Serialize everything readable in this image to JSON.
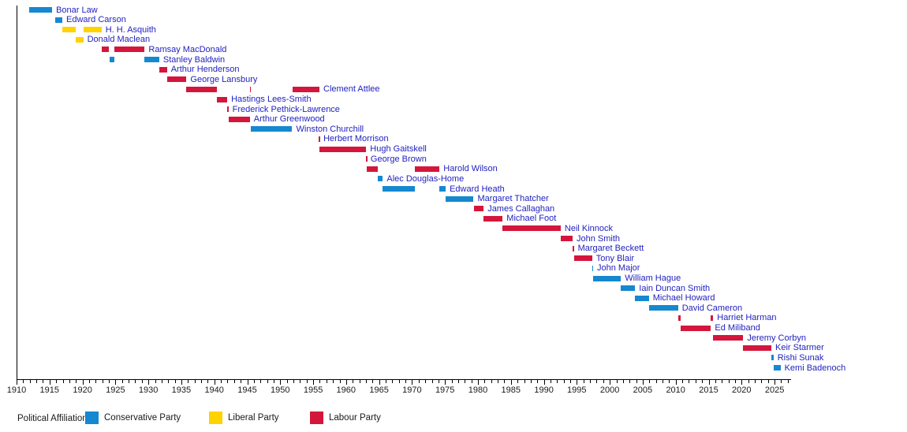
{
  "legend": {
    "title": "Political Affiliation:",
    "items": [
      "conservative",
      "liberal",
      "labour"
    ]
  },
  "chart_data": {
    "type": "timeline",
    "description": "Gantt-style timeline of UK Leaders of the Opposition by political affiliation, 1910-2027",
    "axis": {
      "x_min": 1910,
      "x_max": 2027.4,
      "major_tick_interval": 5,
      "minor_tick_interval": 1,
      "tick_labels": [
        1910,
        1915,
        1920,
        1925,
        1930,
        1935,
        1940,
        1945,
        1950,
        1955,
        1960,
        1965,
        1970,
        1975,
        1980,
        1985,
        1990,
        1995,
        2000,
        2005,
        2010,
        2015,
        2020,
        2025
      ],
      "grid": false
    },
    "parties": {
      "conservative": {
        "label": "Conservative Party",
        "color": "#1588D0"
      },
      "liberal": {
        "label": "Liberal Party",
        "color": "#FFD300"
      },
      "labour": {
        "label": "Labour Party",
        "color": "#D4163C"
      }
    },
    "label_color": "#2222C0",
    "people": [
      {
        "name": "Bonar Law",
        "party": "conservative",
        "segments": [
          [
            1911.87,
            1915.4
          ]
        ]
      },
      {
        "name": "Edward Carson",
        "party": "conservative",
        "segments": [
          [
            1915.8,
            1916.94
          ]
        ]
      },
      {
        "name": "H. H. Asquith",
        "party": "liberal",
        "segments": [
          [
            1916.95,
            1918.95
          ],
          [
            1920.12,
            1922.89
          ]
        ]
      },
      {
        "name": "Donald Maclean",
        "party": "liberal",
        "segments": [
          [
            1919.0,
            1920.12
          ]
        ]
      },
      {
        "name": "Ramsay MacDonald",
        "party": "labour",
        "segments": [
          [
            1922.89,
            1924.06
          ],
          [
            1924.84,
            1929.43
          ]
        ]
      },
      {
        "name": "Stanley Baldwin",
        "party": "conservative",
        "segments": [
          [
            1924.06,
            1924.84
          ],
          [
            1929.43,
            1931.65
          ]
        ]
      },
      {
        "name": "Arthur Henderson",
        "party": "labour",
        "segments": [
          [
            1931.65,
            1932.82
          ]
        ]
      },
      {
        "name": "George Lansbury",
        "party": "labour",
        "segments": [
          [
            1932.82,
            1935.77
          ]
        ]
      },
      {
        "name": "Clement Attlee",
        "party": "labour",
        "segments": [
          [
            1935.77,
            1940.36
          ],
          [
            1945.39,
            1945.57
          ],
          [
            1951.82,
            1955.95
          ]
        ]
      },
      {
        "name": "Hastings Lees-Smith",
        "party": "labour",
        "segments": [
          [
            1940.36,
            1941.96
          ]
        ]
      },
      {
        "name": "Frederick Pethick-Lawrence",
        "party": "labour",
        "segments": [
          [
            1941.97,
            1942.14
          ]
        ]
      },
      {
        "name": "Arthur Greenwood",
        "party": "labour",
        "segments": [
          [
            1942.15,
            1945.39
          ]
        ]
      },
      {
        "name": "Winston Churchill",
        "party": "conservative",
        "segments": [
          [
            1945.57,
            1951.82
          ]
        ]
      },
      {
        "name": "Herbert Morrison",
        "party": "labour",
        "segments": [
          [
            1955.88,
            1955.96
          ]
        ]
      },
      {
        "name": "Hugh Gaitskell",
        "party": "labour",
        "segments": [
          [
            1955.96,
            1963.05
          ]
        ]
      },
      {
        "name": "George Brown",
        "party": "labour",
        "segments": [
          [
            1963.05,
            1963.12
          ]
        ]
      },
      {
        "name": "Harold Wilson",
        "party": "labour",
        "segments": [
          [
            1963.12,
            1964.79
          ],
          [
            1970.47,
            1974.17
          ]
        ]
      },
      {
        "name": "Alec Douglas-Home",
        "party": "conservative",
        "segments": [
          [
            1964.79,
            1965.57
          ]
        ]
      },
      {
        "name": "Edward Heath",
        "party": "conservative",
        "segments": [
          [
            1965.57,
            1970.47
          ],
          [
            1974.17,
            1975.11
          ]
        ]
      },
      {
        "name": "Margaret Thatcher",
        "party": "conservative",
        "segments": [
          [
            1975.11,
            1979.34
          ]
        ]
      },
      {
        "name": "James Callaghan",
        "party": "labour",
        "segments": [
          [
            1979.34,
            1980.86
          ]
        ]
      },
      {
        "name": "Michael Foot",
        "party": "labour",
        "segments": [
          [
            1980.86,
            1983.75
          ]
        ]
      },
      {
        "name": "Neil Kinnock",
        "party": "labour",
        "segments": [
          [
            1983.75,
            1992.55
          ]
        ]
      },
      {
        "name": "John Smith",
        "party": "labour",
        "segments": [
          [
            1992.55,
            1994.36
          ]
        ]
      },
      {
        "name": "Margaret Beckett",
        "party": "labour",
        "segments": [
          [
            1994.36,
            1994.55
          ]
        ]
      },
      {
        "name": "Tony Blair",
        "party": "labour",
        "segments": [
          [
            1994.55,
            1997.33
          ]
        ]
      },
      {
        "name": "John Major",
        "party": "conservative",
        "segments": [
          [
            1997.33,
            1997.47
          ]
        ]
      },
      {
        "name": "William Hague",
        "party": "conservative",
        "segments": [
          [
            1997.47,
            2001.7
          ]
        ]
      },
      {
        "name": "Iain Duncan Smith",
        "party": "conservative",
        "segments": [
          [
            2001.7,
            2003.85
          ]
        ]
      },
      {
        "name": "Michael Howard",
        "party": "conservative",
        "segments": [
          [
            2003.85,
            2005.93
          ]
        ]
      },
      {
        "name": "David Cameron",
        "party": "conservative",
        "segments": [
          [
            2005.93,
            2010.36
          ]
        ]
      },
      {
        "name": "Harriet Harman",
        "party": "labour",
        "segments": [
          [
            2010.36,
            2010.73
          ],
          [
            2015.35,
            2015.7
          ]
        ]
      },
      {
        "name": "Ed Miliband",
        "party": "labour",
        "segments": [
          [
            2010.73,
            2015.35
          ]
        ]
      },
      {
        "name": "Jeremy Corbyn",
        "party": "labour",
        "segments": [
          [
            2015.7,
            2020.26
          ]
        ]
      },
      {
        "name": "Keir Starmer",
        "party": "labour",
        "segments": [
          [
            2020.26,
            2024.51
          ]
        ]
      },
      {
        "name": "Rishi Sunak",
        "party": "conservative",
        "segments": [
          [
            2024.51,
            2024.84
          ]
        ]
      },
      {
        "name": "Kemi Badenoch",
        "party": "conservative",
        "segments": [
          [
            2024.84,
            2025.9
          ]
        ]
      }
    ]
  }
}
